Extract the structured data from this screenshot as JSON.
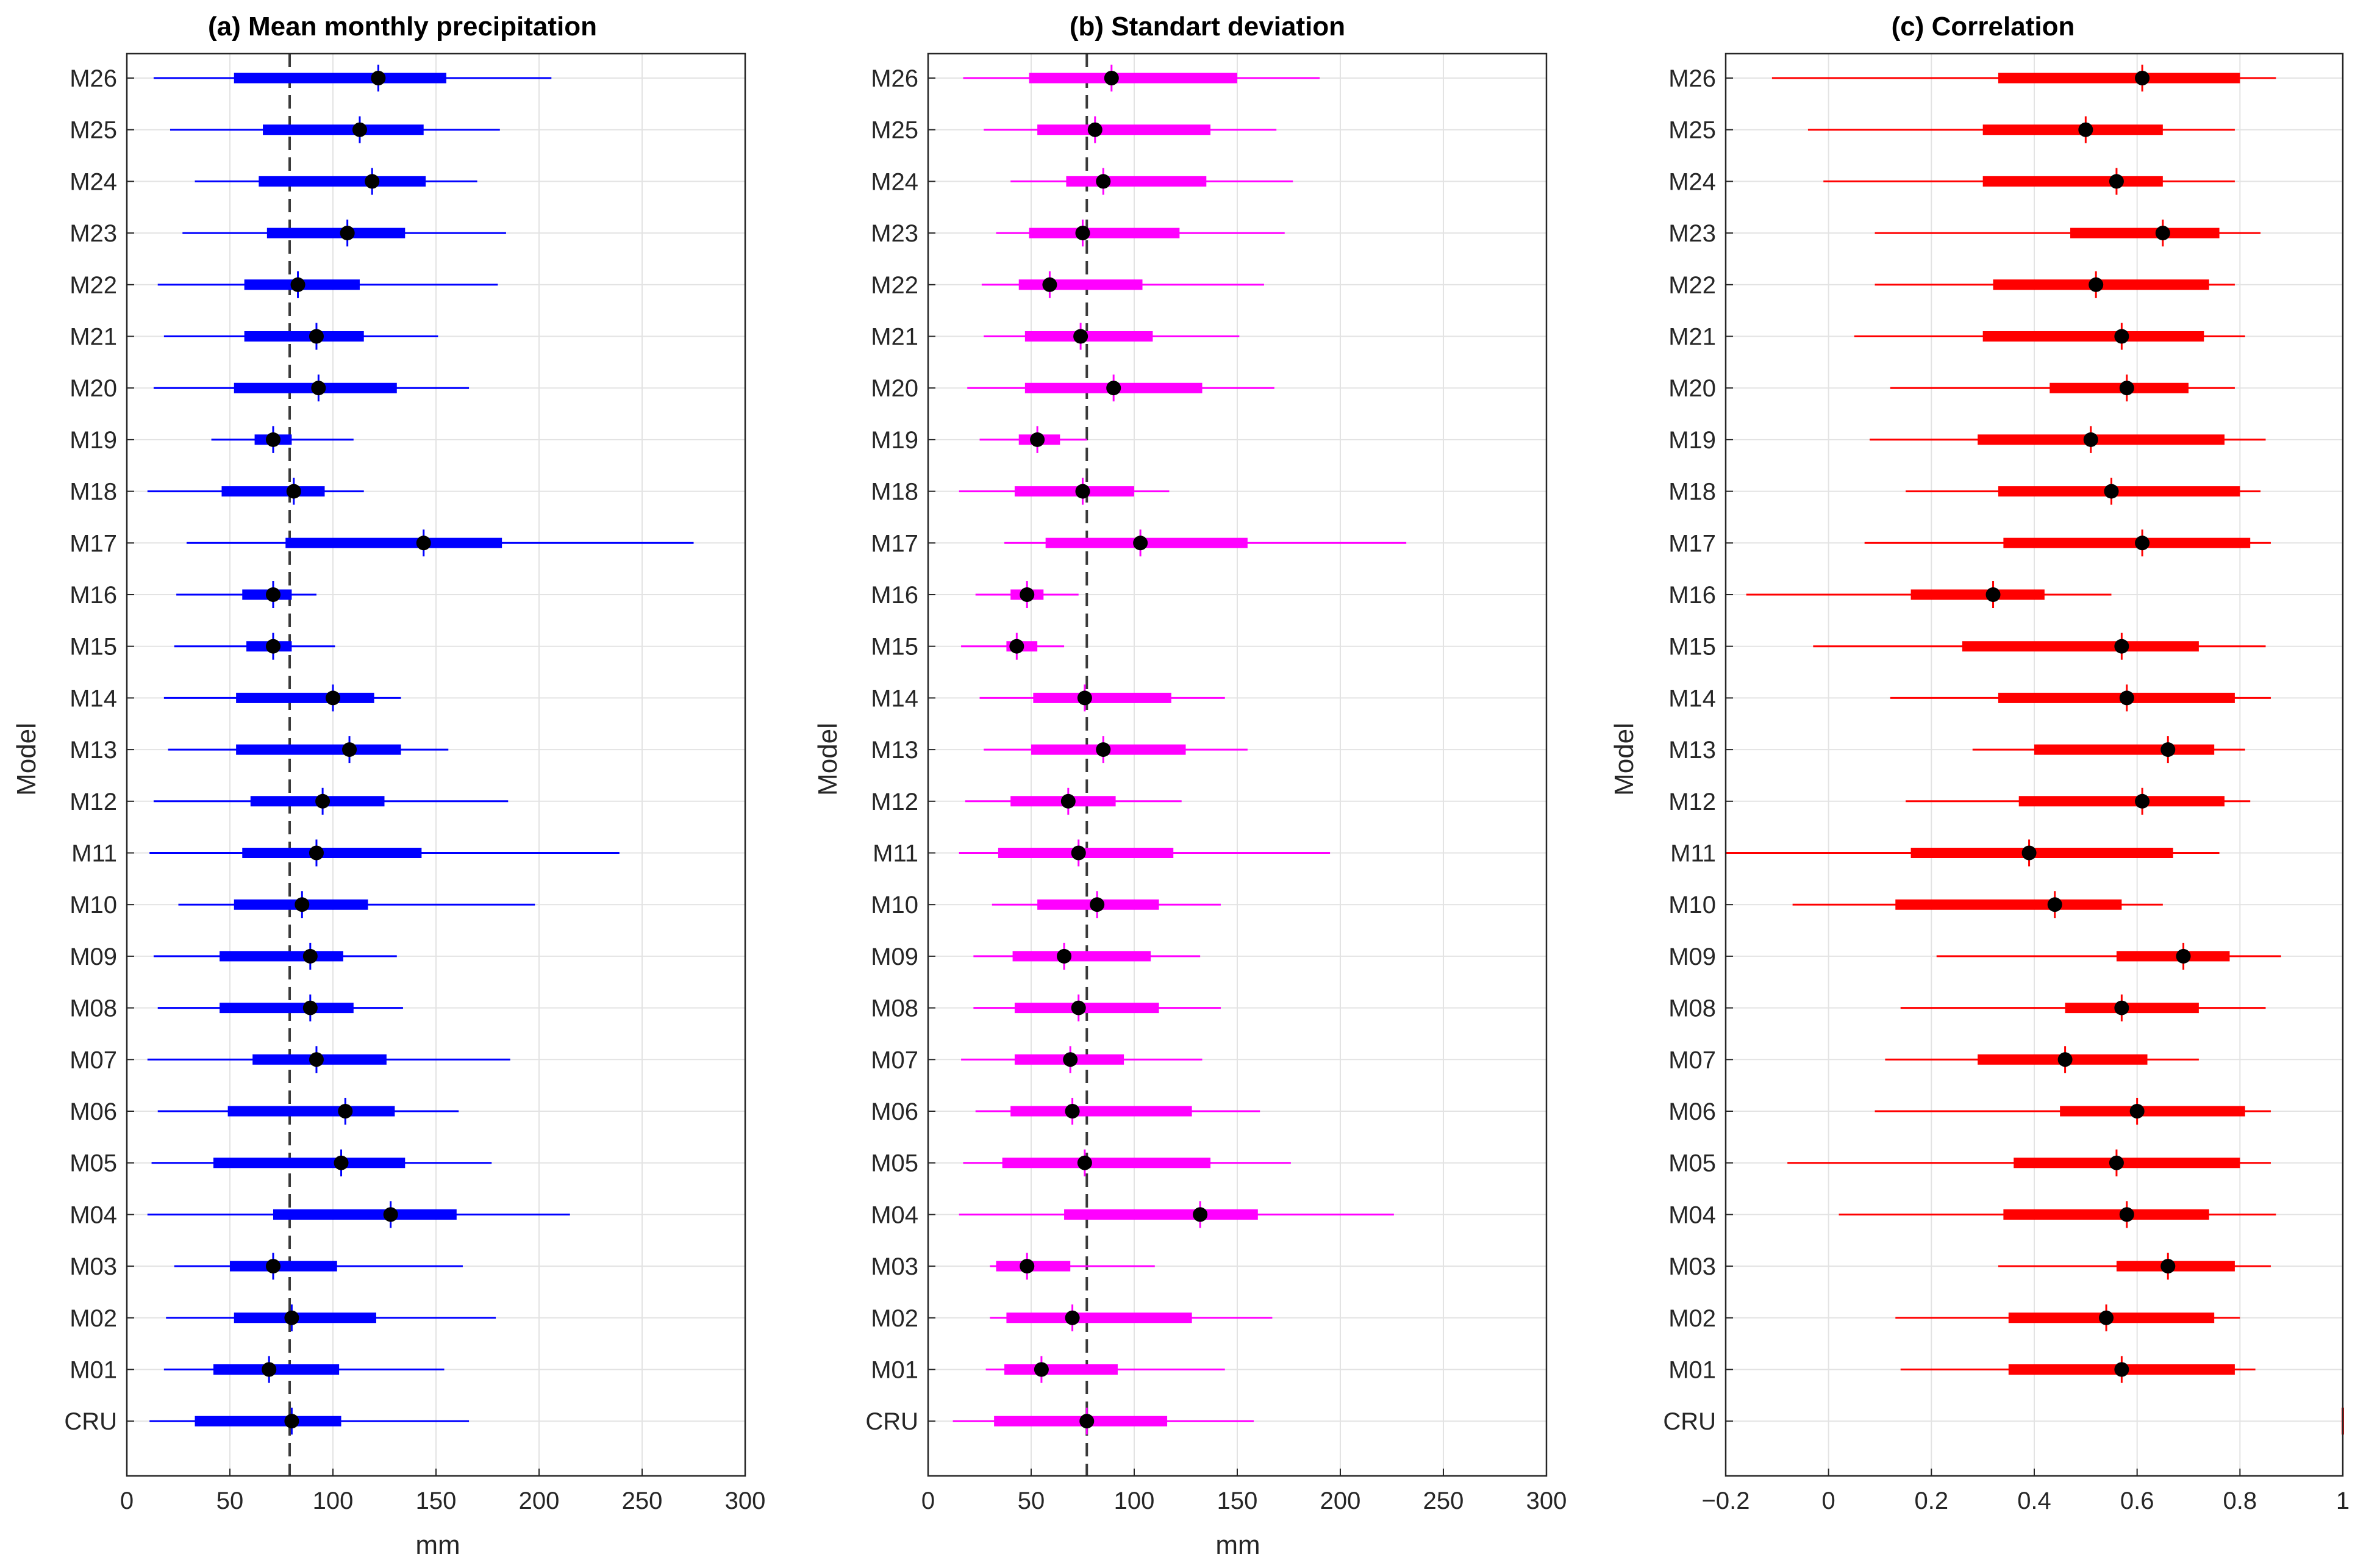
{
  "chart_data": [
    {
      "type": "boxplot-horizontal",
      "title": "(a) Mean monthly precipitation",
      "xlabel": "mm",
      "ylabel": "Model",
      "xlim": [
        0,
        300
      ],
      "xticks": [
        "0",
        "50",
        "100",
        "150",
        "200",
        "250",
        "300"
      ],
      "xtick_values": [
        0,
        50,
        100,
        150,
        200,
        250,
        300
      ],
      "reference_line": 79,
      "color": "#0000ff",
      "categories": [
        "M26",
        "M25",
        "M24",
        "M23",
        "M22",
        "M21",
        "M20",
        "M19",
        "M18",
        "M17",
        "M16",
        "M15",
        "M14",
        "M13",
        "M12",
        "M11",
        "M10",
        "M09",
        "M08",
        "M07",
        "M06",
        "M05",
        "M04",
        "M03",
        "M02",
        "M01",
        "CRU"
      ],
      "series": [
        {
          "name": "M26",
          "min": 13,
          "q1": 52,
          "median": 122,
          "q3": 155,
          "max": 206
        },
        {
          "name": "M25",
          "min": 21,
          "q1": 66,
          "median": 113,
          "q3": 144,
          "max": 181
        },
        {
          "name": "M24",
          "min": 33,
          "q1": 64,
          "median": 119,
          "q3": 145,
          "max": 170
        },
        {
          "name": "M23",
          "min": 27,
          "q1": 68,
          "median": 107,
          "q3": 135,
          "max": 184
        },
        {
          "name": "M22",
          "min": 15,
          "q1": 57,
          "median": 83,
          "q3": 113,
          "max": 180
        },
        {
          "name": "M21",
          "min": 18,
          "q1": 57,
          "median": 92,
          "q3": 115,
          "max": 151
        },
        {
          "name": "M20",
          "min": 13,
          "q1": 52,
          "median": 93,
          "q3": 131,
          "max": 166
        },
        {
          "name": "M19",
          "min": 41,
          "q1": 62,
          "median": 71,
          "q3": 80,
          "max": 110
        },
        {
          "name": "M18",
          "min": 10,
          "q1": 46,
          "median": 81,
          "q3": 96,
          "max": 115
        },
        {
          "name": "M17",
          "min": 29,
          "q1": 77,
          "median": 144,
          "q3": 182,
          "max": 275
        },
        {
          "name": "M16",
          "min": 24,
          "q1": 56,
          "median": 71,
          "q3": 80,
          "max": 92
        },
        {
          "name": "M15",
          "min": 23,
          "q1": 58,
          "median": 71,
          "q3": 80,
          "max": 101
        },
        {
          "name": "M14",
          "min": 18,
          "q1": 53,
          "median": 100,
          "q3": 120,
          "max": 133
        },
        {
          "name": "M13",
          "min": 20,
          "q1": 53,
          "median": 108,
          "q3": 133,
          "max": 156
        },
        {
          "name": "M12",
          "min": 13,
          "q1": 60,
          "median": 95,
          "q3": 125,
          "max": 185
        },
        {
          "name": "M11",
          "min": 11,
          "q1": 56,
          "median": 92,
          "q3": 143,
          "max": 239
        },
        {
          "name": "M10",
          "min": 25,
          "q1": 52,
          "median": 85,
          "q3": 117,
          "max": 198
        },
        {
          "name": "M09",
          "min": 13,
          "q1": 45,
          "median": 89,
          "q3": 105,
          "max": 131
        },
        {
          "name": "M08",
          "min": 15,
          "q1": 45,
          "median": 89,
          "q3": 110,
          "max": 134
        },
        {
          "name": "M07",
          "min": 10,
          "q1": 61,
          "median": 92,
          "q3": 126,
          "max": 186
        },
        {
          "name": "M06",
          "min": 15,
          "q1": 49,
          "median": 106,
          "q3": 130,
          "max": 161
        },
        {
          "name": "M05",
          "min": 12,
          "q1": 42,
          "median": 104,
          "q3": 135,
          "max": 177
        },
        {
          "name": "M04",
          "min": 10,
          "q1": 71,
          "median": 128,
          "q3": 160,
          "max": 215
        },
        {
          "name": "M03",
          "min": 23,
          "q1": 50,
          "median": 71,
          "q3": 102,
          "max": 163
        },
        {
          "name": "M02",
          "min": 19,
          "q1": 52,
          "median": 80,
          "q3": 121,
          "max": 179
        },
        {
          "name": "M01",
          "min": 18,
          "q1": 42,
          "median": 69,
          "q3": 103,
          "max": 154
        },
        {
          "name": "CRU",
          "min": 11,
          "q1": 33,
          "median": 80,
          "q3": 104,
          "max": 166
        }
      ]
    },
    {
      "type": "boxplot-horizontal",
      "title": "(b) Standart deviation",
      "xlabel": "mm",
      "ylabel": "Model",
      "xlim": [
        0,
        300
      ],
      "xticks": [
        "0",
        "50",
        "100",
        "150",
        "200",
        "250",
        "300"
      ],
      "xtick_values": [
        0,
        50,
        100,
        150,
        200,
        250,
        300
      ],
      "reference_line": 77,
      "color": "#ff00ff",
      "categories": [
        "M26",
        "M25",
        "M24",
        "M23",
        "M22",
        "M21",
        "M20",
        "M19",
        "M18",
        "M17",
        "M16",
        "M15",
        "M14",
        "M13",
        "M12",
        "M11",
        "M10",
        "M09",
        "M08",
        "M07",
        "M06",
        "M05",
        "M04",
        "M03",
        "M02",
        "M01",
        "CRU"
      ],
      "series": [
        {
          "name": "M26",
          "min": 17,
          "q1": 49,
          "median": 89,
          "q3": 150,
          "max": 190
        },
        {
          "name": "M25",
          "min": 27,
          "q1": 53,
          "median": 81,
          "q3": 137,
          "max": 169
        },
        {
          "name": "M24",
          "min": 40,
          "q1": 67,
          "median": 85,
          "q3": 135,
          "max": 177
        },
        {
          "name": "M23",
          "min": 33,
          "q1": 49,
          "median": 75,
          "q3": 122,
          "max": 173
        },
        {
          "name": "M22",
          "min": 26,
          "q1": 44,
          "median": 59,
          "q3": 104,
          "max": 163
        },
        {
          "name": "M21",
          "min": 27,
          "q1": 47,
          "median": 74,
          "q3": 109,
          "max": 151
        },
        {
          "name": "M20",
          "min": 19,
          "q1": 47,
          "median": 90,
          "q3": 133,
          "max": 168
        },
        {
          "name": "M19",
          "min": 25,
          "q1": 44,
          "median": 53,
          "q3": 64,
          "max": 77
        },
        {
          "name": "M18",
          "min": 15,
          "q1": 42,
          "median": 75,
          "q3": 100,
          "max": 117
        },
        {
          "name": "M17",
          "min": 37,
          "q1": 57,
          "median": 103,
          "q3": 155,
          "max": 232
        },
        {
          "name": "M16",
          "min": 23,
          "q1": 40,
          "median": 48,
          "q3": 56,
          "max": 73
        },
        {
          "name": "M15",
          "min": 16,
          "q1": 38,
          "median": 43,
          "q3": 53,
          "max": 66
        },
        {
          "name": "M14",
          "min": 25,
          "q1": 51,
          "median": 76,
          "q3": 118,
          "max": 144
        },
        {
          "name": "M13",
          "min": 27,
          "q1": 50,
          "median": 85,
          "q3": 125,
          "max": 155
        },
        {
          "name": "M12",
          "min": 18,
          "q1": 40,
          "median": 68,
          "q3": 91,
          "max": 123
        },
        {
          "name": "M11",
          "min": 15,
          "q1": 34,
          "median": 73,
          "q3": 119,
          "max": 195
        },
        {
          "name": "M10",
          "min": 31,
          "q1": 53,
          "median": 82,
          "q3": 112,
          "max": 142
        },
        {
          "name": "M09",
          "min": 22,
          "q1": 41,
          "median": 66,
          "q3": 108,
          "max": 132
        },
        {
          "name": "M08",
          "min": 22,
          "q1": 42,
          "median": 73,
          "q3": 112,
          "max": 142
        },
        {
          "name": "M07",
          "min": 16,
          "q1": 42,
          "median": 69,
          "q3": 95,
          "max": 133
        },
        {
          "name": "M06",
          "min": 23,
          "q1": 40,
          "median": 70,
          "q3": 128,
          "max": 161
        },
        {
          "name": "M05",
          "min": 17,
          "q1": 36,
          "median": 76,
          "q3": 137,
          "max": 176
        },
        {
          "name": "M04",
          "min": 15,
          "q1": 66,
          "median": 132,
          "q3": 160,
          "max": 226
        },
        {
          "name": "M03",
          "min": 30,
          "q1": 33,
          "median": 48,
          "q3": 69,
          "max": 110
        },
        {
          "name": "M02",
          "min": 30,
          "q1": 38,
          "median": 70,
          "q3": 128,
          "max": 167
        },
        {
          "name": "M01",
          "min": 28,
          "q1": 37,
          "median": 55,
          "q3": 92,
          "max": 144
        },
        {
          "name": "CRU",
          "min": 12,
          "q1": 32,
          "median": 77,
          "q3": 116,
          "max": 158
        }
      ]
    },
    {
      "type": "boxplot-horizontal",
      "title": "(c) Correlation",
      "xlabel": "",
      "ylabel": "Model",
      "xlim": [
        -0.2,
        1.0
      ],
      "xticks": [
        "−0.2",
        "0",
        "0.2",
        "0.4",
        "0.6",
        "0.8",
        "1"
      ],
      "xtick_values": [
        -0.2,
        0,
        0.2,
        0.4,
        0.6,
        0.8,
        1.0
      ],
      "reference_line": null,
      "color": "#ff0000",
      "categories": [
        "M26",
        "M25",
        "M24",
        "M23",
        "M22",
        "M21",
        "M20",
        "M19",
        "M18",
        "M17",
        "M16",
        "M15",
        "M14",
        "M13",
        "M12",
        "M11",
        "M10",
        "M09",
        "M08",
        "M07",
        "M06",
        "M05",
        "M04",
        "M03",
        "M02",
        "M01",
        "CRU"
      ],
      "series": [
        {
          "name": "M26",
          "min": -0.11,
          "q1": 0.33,
          "median": 0.61,
          "q3": 0.8,
          "max": 0.87
        },
        {
          "name": "M25",
          "min": -0.04,
          "q1": 0.3,
          "median": 0.5,
          "q3": 0.65,
          "max": 0.79
        },
        {
          "name": "M24",
          "min": -0.01,
          "q1": 0.3,
          "median": 0.56,
          "q3": 0.65,
          "max": 0.79
        },
        {
          "name": "M23",
          "min": 0.09,
          "q1": 0.47,
          "median": 0.65,
          "q3": 0.76,
          "max": 0.84
        },
        {
          "name": "M22",
          "min": 0.09,
          "q1": 0.32,
          "median": 0.52,
          "q3": 0.74,
          "max": 0.79
        },
        {
          "name": "M21",
          "min": 0.05,
          "q1": 0.3,
          "median": 0.57,
          "q3": 0.73,
          "max": 0.81
        },
        {
          "name": "M20",
          "min": 0.12,
          "q1": 0.43,
          "median": 0.58,
          "q3": 0.7,
          "max": 0.79
        },
        {
          "name": "M19",
          "min": 0.08,
          "q1": 0.29,
          "median": 0.51,
          "q3": 0.77,
          "max": 0.85
        },
        {
          "name": "M18",
          "min": 0.15,
          "q1": 0.33,
          "median": 0.55,
          "q3": 0.8,
          "max": 0.84
        },
        {
          "name": "M17",
          "min": 0.07,
          "q1": 0.34,
          "median": 0.61,
          "q3": 0.82,
          "max": 0.86
        },
        {
          "name": "M16",
          "min": -0.16,
          "q1": 0.16,
          "median": 0.32,
          "q3": 0.42,
          "max": 0.55
        },
        {
          "name": "M15",
          "min": -0.03,
          "q1": 0.26,
          "median": 0.57,
          "q3": 0.72,
          "max": 0.85
        },
        {
          "name": "M14",
          "min": 0.12,
          "q1": 0.33,
          "median": 0.58,
          "q3": 0.79,
          "max": 0.86
        },
        {
          "name": "M13",
          "min": 0.28,
          "q1": 0.4,
          "median": 0.66,
          "q3": 0.75,
          "max": 0.81
        },
        {
          "name": "M12",
          "min": 0.15,
          "q1": 0.37,
          "median": 0.61,
          "q3": 0.77,
          "max": 0.82
        },
        {
          "name": "M11",
          "min": -0.2,
          "q1": 0.16,
          "median": 0.39,
          "q3": 0.67,
          "max": 0.76
        },
        {
          "name": "M10",
          "min": -0.07,
          "q1": 0.13,
          "median": 0.44,
          "q3": 0.57,
          "max": 0.65
        },
        {
          "name": "M09",
          "min": 0.21,
          "q1": 0.56,
          "median": 0.69,
          "q3": 0.78,
          "max": 0.88
        },
        {
          "name": "M08",
          "min": 0.14,
          "q1": 0.46,
          "median": 0.57,
          "q3": 0.72,
          "max": 0.85
        },
        {
          "name": "M07",
          "min": 0.11,
          "q1": 0.29,
          "median": 0.46,
          "q3": 0.62,
          "max": 0.72
        },
        {
          "name": "M06",
          "min": 0.09,
          "q1": 0.45,
          "median": 0.6,
          "q3": 0.81,
          "max": 0.86
        },
        {
          "name": "M05",
          "min": -0.08,
          "q1": 0.36,
          "median": 0.56,
          "q3": 0.8,
          "max": 0.86
        },
        {
          "name": "M04",
          "min": 0.02,
          "q1": 0.34,
          "median": 0.58,
          "q3": 0.74,
          "max": 0.87
        },
        {
          "name": "M03",
          "min": 0.33,
          "q1": 0.56,
          "median": 0.66,
          "q3": 0.79,
          "max": 0.86
        },
        {
          "name": "M02",
          "min": 0.13,
          "q1": 0.35,
          "median": 0.54,
          "q3": 0.75,
          "max": 0.8
        },
        {
          "name": "M01",
          "min": 0.14,
          "q1": 0.35,
          "median": 0.57,
          "q3": 0.79,
          "max": 0.83
        },
        {
          "name": "CRU",
          "min": 1.0,
          "q1": 1.0,
          "median": 1.0,
          "q3": 1.0,
          "max": 1.0
        }
      ]
    }
  ]
}
